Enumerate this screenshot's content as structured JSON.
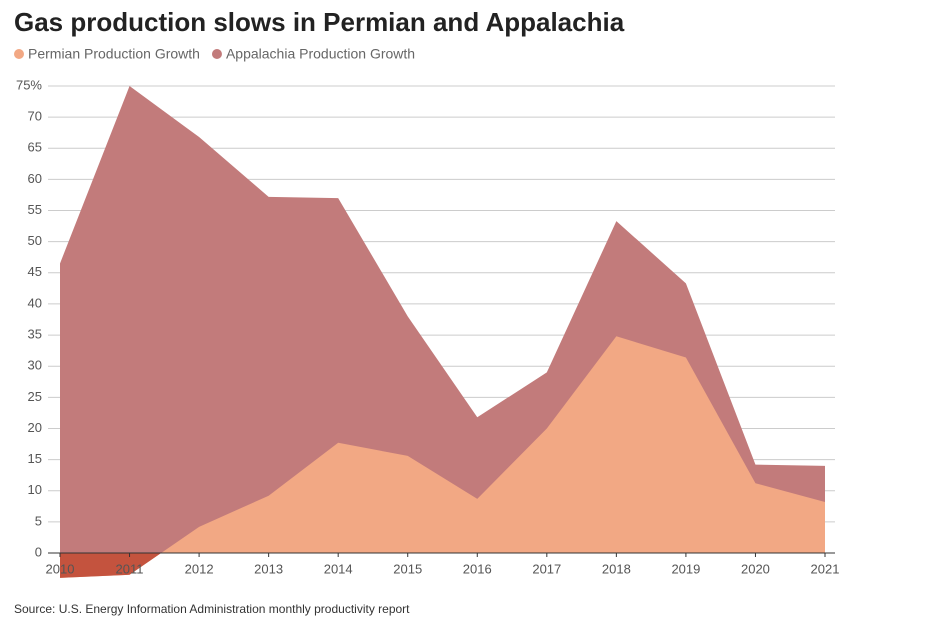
{
  "chart_data": {
    "type": "area",
    "title": "Gas production slows in Permian and Appalachia",
    "source": "Source: U.S. Energy Information Administration monthly productivity report",
    "x": [
      2010,
      2011,
      2012,
      2013,
      2014,
      2015,
      2016,
      2017,
      2018,
      2019,
      2020,
      2021
    ],
    "xlim": [
      2010,
      2021
    ],
    "xticks": [
      2010,
      2011,
      2012,
      2013,
      2014,
      2015,
      2016,
      2017,
      2018,
      2019,
      2020,
      2021
    ],
    "ylim": [
      -5,
      75
    ],
    "yticks": [
      0,
      5,
      10,
      15,
      20,
      25,
      30,
      35,
      40,
      45,
      50,
      55,
      60,
      65,
      70,
      {
        "value": 75,
        "label": "75%"
      }
    ],
    "grid": true,
    "series": [
      {
        "name": "Permian Production Growth",
        "color": "#f2a884",
        "negative_color": "#c4533e",
        "values": [
          -4,
          -3.5,
          4.2,
          9.2,
          17.7,
          15.6,
          8.7,
          20,
          34.8,
          31.4,
          11.2,
          8.2
        ]
      },
      {
        "name": "Appalachia Production Growth",
        "color": "#c27b7b",
        "values": [
          46.5,
          75,
          66.8,
          57.2,
          57,
          38,
          21.8,
          29,
          53.3,
          43.3,
          14.2,
          14
        ]
      }
    ]
  }
}
